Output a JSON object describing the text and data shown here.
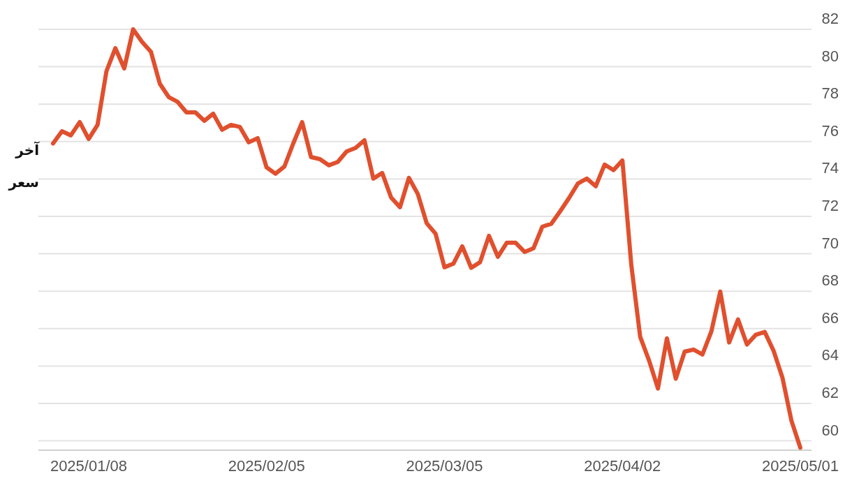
{
  "chart_data": {
    "type": "line",
    "ylabel": "آخر سعر",
    "categories": [
      null,
      null,
      null,
      null,
      "2025/01/08",
      null,
      null,
      null,
      null,
      null,
      null,
      null,
      null,
      null,
      null,
      null,
      null,
      null,
      null,
      null,
      null,
      null,
      null,
      null,
      "2025/02/05",
      null,
      null,
      null,
      null,
      null,
      null,
      null,
      null,
      null,
      null,
      null,
      null,
      null,
      null,
      null,
      null,
      null,
      null,
      null,
      "2025/03/05",
      null,
      null,
      null,
      null,
      null,
      null,
      null,
      null,
      null,
      null,
      null,
      null,
      null,
      null,
      null,
      null,
      null,
      null,
      null,
      "2025/04/02",
      null,
      null,
      null,
      null,
      null,
      null,
      null,
      null,
      null,
      null,
      null,
      null,
      null,
      null,
      null,
      null,
      null,
      null,
      null,
      "2025/05/01"
    ],
    "series": [
      {
        "color": "#e0502e",
        "values": [
          75.9,
          76.55,
          76.33,
          77.04,
          76.14,
          76.89,
          79.76,
          80.99,
          79.91,
          82.0,
          81.33,
          80.8,
          79.09,
          78.38,
          78.12,
          77.56,
          77.56,
          77.11,
          77.49,
          76.63,
          76.89,
          76.78,
          75.96,
          76.18,
          74.62,
          74.28,
          74.66,
          75.9,
          77.04,
          75.17,
          75.06,
          74.73,
          74.91,
          75.47,
          75.66,
          76.07,
          74.02,
          74.32,
          73.01,
          72.49,
          74.06,
          73.2,
          71.63,
          71.07,
          69.28,
          69.47,
          70.4,
          69.25,
          69.55,
          70.96,
          69.84,
          70.59,
          70.59,
          70.1,
          70.29,
          71.45,
          71.6,
          72.27,
          72.98,
          73.76,
          74.02,
          73.61,
          74.77,
          74.47,
          74.99,
          69.4,
          65.56,
          64.29,
          62.8,
          65.48,
          63.32,
          64.77,
          64.88,
          64.62,
          65.85,
          67.98,
          65.26,
          66.49,
          65.15,
          65.67,
          65.82,
          64.81,
          63.36,
          61.08,
          59.63
        ]
      }
    ],
    "ylim": [
      59.5,
      82
    ],
    "yticks": [
      60,
      62,
      64,
      66,
      68,
      70,
      72,
      74,
      76,
      78,
      80,
      82
    ],
    "grid": "y",
    "line_style": "solid",
    "marker": "none"
  }
}
